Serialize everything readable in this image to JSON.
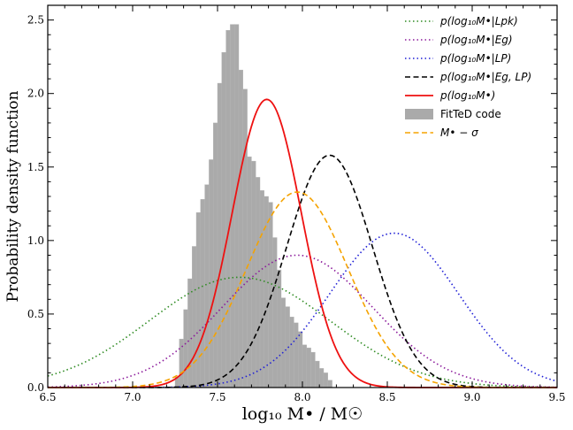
{
  "chart_data": {
    "type": "line",
    "xlabel": "log₁₀ M• / M☉",
    "ylabel": "Probability density function",
    "xlim": [
      6.5,
      9.5
    ],
    "ylim": [
      0,
      2.6
    ],
    "xticks": [
      "6.5",
      "7.0",
      "7.5",
      "8.0",
      "8.5",
      "9.0",
      "9.5"
    ],
    "yticks": [
      "0.0",
      "0.5",
      "1.0",
      "1.5",
      "2.0",
      "2.5"
    ],
    "legend_position": "top-right",
    "series": [
      {
        "name": "p(log₁₀M•|Lpk)",
        "style": "dotted",
        "color": "#2e8b22",
        "mean": 7.63,
        "peak": 0.75
      },
      {
        "name": "p(log₁₀M•|Eg)",
        "style": "dotted",
        "color": "#8b1a9b",
        "mean": 7.97,
        "peak": 0.9
      },
      {
        "name": "p(log₁₀M•|LP)",
        "style": "dotted",
        "color": "#1f1fd6",
        "mean": 8.54,
        "peak": 1.05
      },
      {
        "name": "p(log₁₀M•|Eg, LP)",
        "style": "dashed",
        "color": "#000000",
        "mean": 8.16,
        "peak": 1.58
      },
      {
        "name": "p(log₁₀M•)",
        "style": "solid",
        "color": "#ee1111",
        "mean": 7.79,
        "peak": 1.96
      },
      {
        "name": "FitTeD code",
        "style": "histogram",
        "color": "#aaaaaa"
      },
      {
        "name": "M• − σ",
        "style": "dashed",
        "color": "#f5a300",
        "mean": 7.97,
        "peak": 1.33
      }
    ],
    "histogram": {
      "bin_start": 7.25,
      "bin_width": 0.025,
      "values": [
        0.07,
        0.33,
        0.53,
        0.74,
        0.96,
        1.19,
        1.28,
        1.38,
        1.55,
        1.8,
        2.07,
        2.28,
        2.43,
        2.47,
        2.47,
        2.16,
        2.03,
        1.57,
        1.54,
        1.43,
        1.34,
        1.3,
        1.26,
        1.02,
        0.8,
        0.61,
        0.55,
        0.48,
        0.44,
        0.38,
        0.29,
        0.27,
        0.24,
        0.18,
        0.13,
        0.1,
        0.05
      ]
    }
  }
}
